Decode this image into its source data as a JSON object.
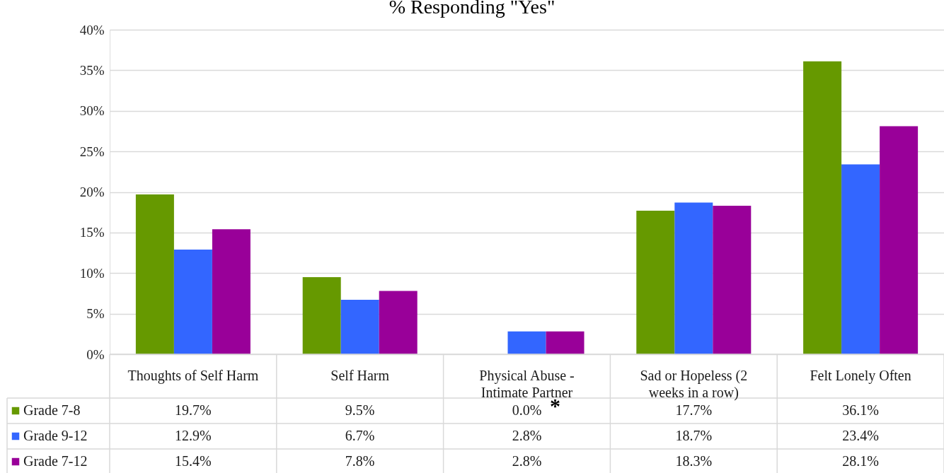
{
  "chart_data": {
    "type": "bar",
    "title": "% Responding \"Yes\"",
    "categories": [
      "Thoughts of Self Harm",
      "Self Harm",
      "Physical Abuse - Intimate Partner",
      "Sad or Hopeless (2 weeks in a row)",
      "Felt Lonely Often"
    ],
    "series": [
      {
        "name": "Grade 7-8",
        "color": "#669900",
        "values": [
          19.7,
          9.5,
          0.0,
          17.7,
          36.1
        ],
        "value_labels": [
          "19.7%",
          "9.5%",
          "0.0%",
          "17.7%",
          "36.1%"
        ]
      },
      {
        "name": "Grade 9-12",
        "color": "#3366ff",
        "values": [
          12.9,
          6.7,
          2.8,
          18.7,
          23.4
        ],
        "value_labels": [
          "12.9%",
          "6.7%",
          "2.8%",
          "18.7%",
          "23.4%"
        ]
      },
      {
        "name": "Grade 7-12",
        "color": "#990099",
        "values": [
          15.4,
          7.8,
          2.8,
          18.3,
          28.1
        ],
        "value_labels": [
          "15.4%",
          "7.8%",
          "2.8%",
          "18.3%",
          "28.1%"
        ]
      }
    ],
    "ylim": [
      0,
      40
    ],
    "yticks": [
      {
        "value": 0,
        "label": "0%"
      },
      {
        "value": 5,
        "label": "5%"
      },
      {
        "value": 10,
        "label": "10%"
      },
      {
        "value": 15,
        "label": "15%"
      },
      {
        "value": 20,
        "label": "20%"
      },
      {
        "value": 25,
        "label": "25%"
      },
      {
        "value": 30,
        "label": "30%"
      },
      {
        "value": 35,
        "label": "35%"
      },
      {
        "value": 40,
        "label": "40%"
      }
    ],
    "grid": "y",
    "legend": "bottom",
    "annotations": [
      {
        "text": "*",
        "x": "Physical Abuse - Intimate Partner",
        "y": 0
      }
    ]
  }
}
